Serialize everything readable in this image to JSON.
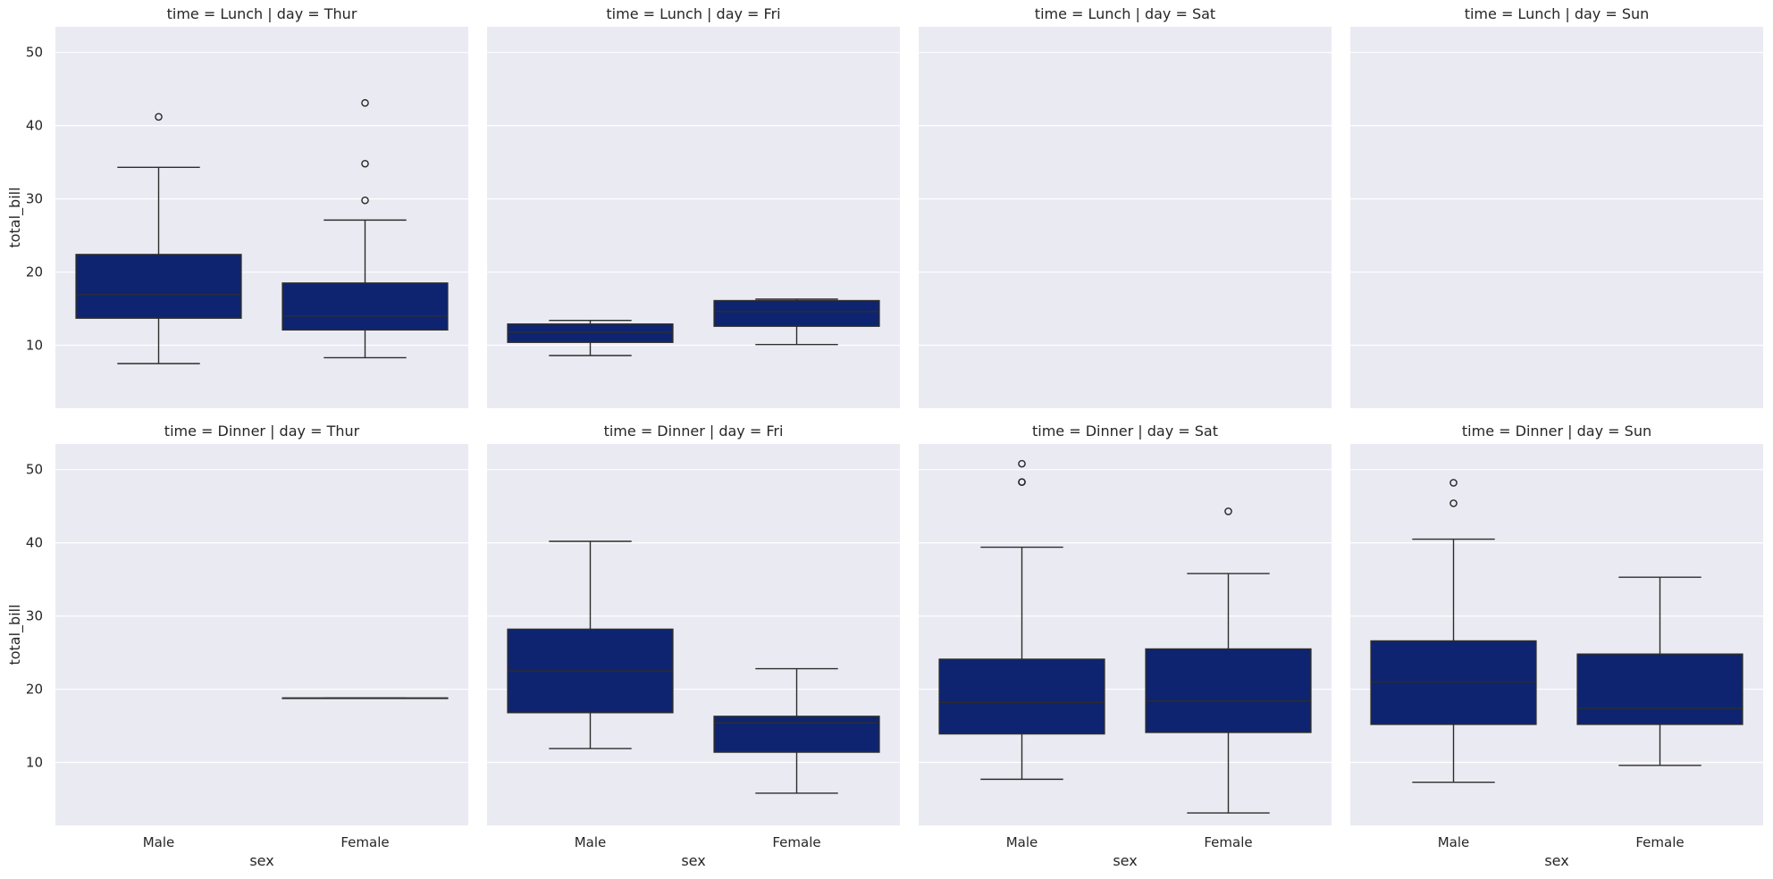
{
  "chart_data": {
    "type": "box",
    "facet_titles": [
      [
        "time = Lunch | day = Thur",
        "time = Lunch | day = Fri",
        "time = Lunch | day = Sat",
        "time = Lunch | day = Sun"
      ],
      [
        "time = Dinner | day = Thur",
        "time = Dinner | day = Fri",
        "time = Dinner | day = Sat",
        "time = Dinner | day = Sun"
      ]
    ],
    "xlabel": "sex",
    "ylabel": "total_bill",
    "categories": [
      "Male",
      "Female"
    ],
    "yticks": [
      10,
      20,
      30,
      40,
      50
    ],
    "ylim": [
      1.4,
      53.5
    ],
    "grid": true,
    "colors": {
      "box_fill": "#0e2470",
      "line": "#2d2d2d",
      "panel_bg": "#eaeaf2",
      "grid": "#ffffff"
    },
    "panels": [
      {
        "time": "Lunch",
        "day": "Thur",
        "boxes": {
          "Male": {
            "whislo": 7.5,
            "q1": 13.7,
            "median": 16.9,
            "q3": 22.4,
            "whishi": 34.3,
            "fliers": [
              41.2
            ]
          },
          "Female": {
            "whislo": 8.3,
            "q1": 12.1,
            "median": 14.0,
            "q3": 18.5,
            "whishi": 27.1,
            "fliers": [
              29.8,
              34.8,
              43.1
            ]
          }
        }
      },
      {
        "time": "Lunch",
        "day": "Fri",
        "boxes": {
          "Male": {
            "whislo": 8.6,
            "q1": 10.4,
            "median": 11.8,
            "q3": 12.9,
            "whishi": 13.4,
            "fliers": []
          },
          "Female": {
            "whislo": 10.1,
            "q1": 12.6,
            "median": 14.6,
            "q3": 16.1,
            "whishi": 16.3,
            "fliers": []
          }
        }
      },
      {
        "time": "Lunch",
        "day": "Sat",
        "boxes": {}
      },
      {
        "time": "Lunch",
        "day": "Sun",
        "boxes": {}
      },
      {
        "time": "Dinner",
        "day": "Thur",
        "boxes": {
          "Female": {
            "whislo": 18.8,
            "q1": 18.8,
            "median": 18.8,
            "q3": 18.8,
            "whishi": 18.8,
            "fliers": []
          }
        }
      },
      {
        "time": "Dinner",
        "day": "Fri",
        "boxes": {
          "Male": {
            "whislo": 11.9,
            "q1": 16.8,
            "median": 22.5,
            "q3": 28.2,
            "whishi": 40.2,
            "fliers": []
          },
          "Female": {
            "whislo": 5.8,
            "q1": 11.4,
            "median": 15.4,
            "q3": 16.3,
            "whishi": 22.8,
            "fliers": []
          }
        }
      },
      {
        "time": "Dinner",
        "day": "Sat",
        "boxes": {
          "Male": {
            "whislo": 7.7,
            "q1": 13.9,
            "median": 18.2,
            "q3": 24.1,
            "whishi": 39.4,
            "fliers": [
              48.3,
              48.3,
              50.8
            ]
          },
          "Female": {
            "whislo": 3.1,
            "q1": 14.1,
            "median": 18.4,
            "q3": 25.5,
            "whishi": 35.8,
            "fliers": [
              44.3
            ]
          }
        }
      },
      {
        "time": "Dinner",
        "day": "Sun",
        "boxes": {
          "Male": {
            "whislo": 7.3,
            "q1": 15.2,
            "median": 21.0,
            "q3": 26.6,
            "whishi": 40.5,
            "fliers": [
              45.4,
              48.2
            ]
          },
          "Female": {
            "whislo": 9.6,
            "q1": 15.2,
            "median": 17.4,
            "q3": 24.8,
            "whishi": 35.3,
            "fliers": []
          }
        }
      }
    ]
  }
}
